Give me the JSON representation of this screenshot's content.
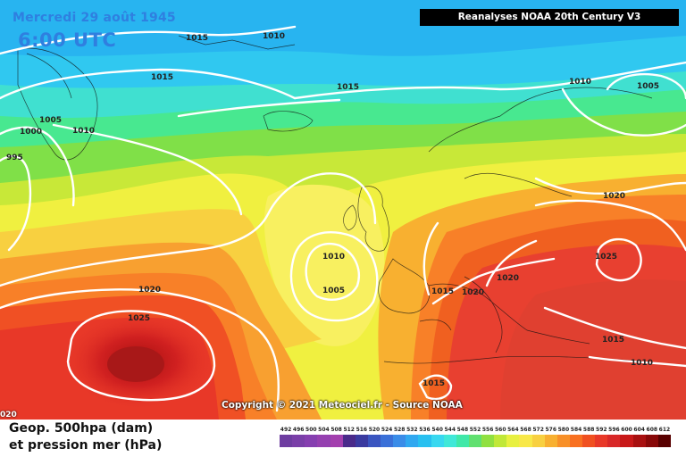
{
  "header": {
    "date": "Mercredi 29 août 1945",
    "time": "6:00 UTC",
    "source_banner": "Reanalyses NOAA 20th Century V3"
  },
  "footer": {
    "copyright": "Copyright © 2021 Meteociel.fr - Source NOAA",
    "corner_label": "020",
    "legend_title_line1": "Geop. 500hpa (dam)",
    "legend_title_line2": "et pression mer (hPa)"
  },
  "legend": {
    "values": [
      492,
      496,
      500,
      504,
      508,
      512,
      516,
      520,
      524,
      528,
      532,
      536,
      540,
      544,
      548,
      552,
      556,
      560,
      564,
      568,
      572,
      576,
      580,
      584,
      588,
      592,
      596,
      600,
      604,
      608,
      612
    ],
    "colors": [
      "#6e3da0",
      "#7a3fa8",
      "#863fb0",
      "#9540b0",
      "#a33fae",
      "#4a2a8a",
      "#3a3aa0",
      "#3a55c0",
      "#3a70d8",
      "#3a8ce8",
      "#30a8f0",
      "#28c0f0",
      "#38d8f0",
      "#40e8d8",
      "#40e8a8",
      "#60e070",
      "#90e040",
      "#c0e838",
      "#e8f040",
      "#f8e848",
      "#f8d040",
      "#f8b030",
      "#f89028",
      "#f87020",
      "#f05020",
      "#e83828",
      "#d82828",
      "#c81818",
      "#a81010",
      "#880808",
      "#580000"
    ]
  },
  "isobars": [
    {
      "text": "1015"
    },
    {
      "text": "1010"
    },
    {
      "text": "1015"
    },
    {
      "text": "1015"
    },
    {
      "text": "1005"
    },
    {
      "text": "1010"
    },
    {
      "text": "1000"
    },
    {
      "text": "995"
    },
    {
      "text": "1010"
    },
    {
      "text": "1005"
    },
    {
      "text": "1020"
    },
    {
      "text": "1010"
    },
    {
      "text": "1005"
    },
    {
      "text": "1025"
    },
    {
      "text": "1020"
    },
    {
      "text": "1025"
    },
    {
      "text": "1015"
    },
    {
      "text": "1020"
    },
    {
      "text": "1020"
    },
    {
      "text": "1015"
    },
    {
      "text": "1010"
    },
    {
      "text": "1015"
    }
  ],
  "colors": {
    "contour_line": "#ffffff",
    "banner_bg": "#000000",
    "title_text": "#2f7fe0"
  }
}
